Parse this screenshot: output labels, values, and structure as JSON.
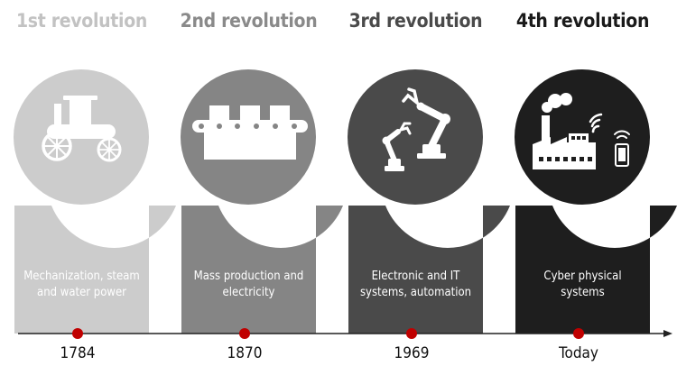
{
  "revolutions": [
    {
      "title": "1st revolution",
      "description_lines": [
        "Mechanization, steam",
        "and water power"
      ],
      "year": "1784",
      "color": "#cccccc",
      "title_color": "#c2c2c2",
      "icon": "steam-engine-icon"
    },
    {
      "title": "2nd revolution",
      "description_lines": [
        "Mass production and",
        "electricity"
      ],
      "year": "1870",
      "color": "#858585",
      "title_color": "#8a8a8a",
      "icon": "conveyor-belt-icon"
    },
    {
      "title": "3rd revolution",
      "description_lines": [
        "Electronic and IT",
        "systems, automation"
      ],
      "year": "1969",
      "color": "#4a4a4a",
      "title_color": "#4a4a4a",
      "icon": "robotic-arm-icon"
    },
    {
      "title": "4th revolution",
      "description_lines": [
        "Cyber physical",
        "systems"
      ],
      "year": "Today",
      "color": "#1e1e1e",
      "title_color": "#1a1a1a",
      "icon": "smart-factory-icon"
    }
  ],
  "timeline": {
    "line_color": "#222222",
    "dot_color": "#c00000"
  }
}
